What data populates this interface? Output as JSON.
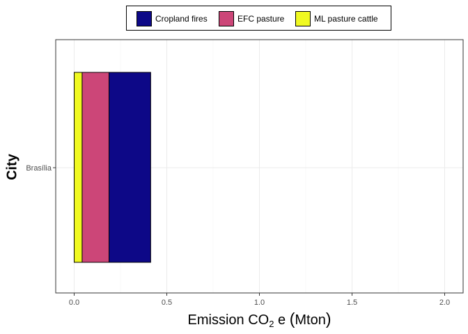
{
  "chart_data": {
    "type": "bar",
    "orientation": "horizontal",
    "stacked": true,
    "categories": [
      "Brasília"
    ],
    "series": [
      {
        "name": "Cropland fires",
        "values": [
          0.225
        ],
        "color": "#0d0887"
      },
      {
        "name": "EFC pasture",
        "values": [
          0.145
        ],
        "color": "#cc4678"
      },
      {
        "name": "ML pasture cattle",
        "values": [
          0.043
        ],
        "color": "#f0f921"
      }
    ],
    "xlabel_main": "Emission CO",
    "xlabel_sub": "2",
    "xlabel_rest": " e ",
    "xlabel_unit": "Mton",
    "ylabel": "City",
    "xlim": [
      0,
      2.0
    ],
    "xticks": [
      "0.0",
      "0.5",
      "1.0",
      "1.5",
      "2.0"
    ],
    "xtick_values": [
      0,
      0.5,
      1.0,
      1.5,
      2.0
    ],
    "grid": true,
    "legend_position": "top"
  }
}
